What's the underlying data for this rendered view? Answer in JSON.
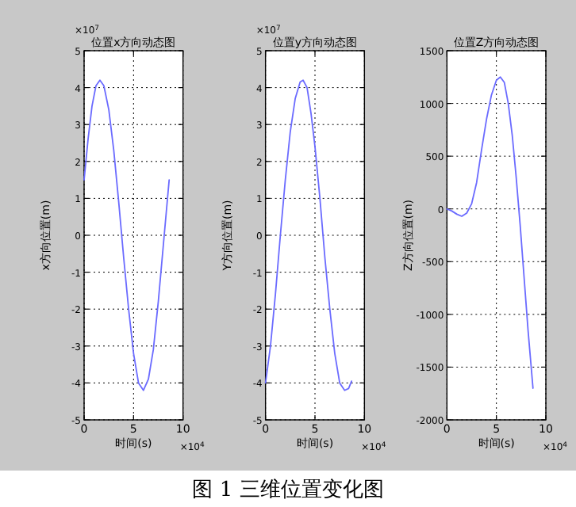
{
  "chart_data": [
    {
      "type": "line",
      "title": "位置x方向动态图",
      "xlabel": "时间(s)",
      "ylabel": "x方向位置(m)",
      "annotations": [
        "×10$^{4}$",
        "×10$^{7}$"
      ],
      "xlim": [
        0,
        10
      ],
      "xticks": [
        0,
        5,
        10
      ],
      "ylim": [
        -5,
        5
      ],
      "yticks": [
        -5,
        -4,
        -3,
        -2,
        -1,
        0,
        1,
        2,
        3,
        4,
        5
      ],
      "grid": true,
      "marker": "none",
      "line_style": "solid",
      "x": [
        0,
        0.4,
        0.8,
        1.2,
        1.6,
        2.0,
        2.5,
        3.0,
        3.5,
        4.0,
        4.5,
        5.0,
        5.5,
        6.0,
        6.5,
        7.0,
        7.5,
        8.0,
        8.3,
        8.6
      ],
      "series": [
        {
          "color": "#6b6bff",
          "values": [
            1.5,
            2.6,
            3.5,
            4.05,
            4.2,
            4.05,
            3.4,
            2.3,
            0.9,
            -0.6,
            -2.0,
            -3.2,
            -4.0,
            -4.2,
            -3.9,
            -3.1,
            -1.8,
            -0.3,
            0.6,
            1.5
          ]
        }
      ]
    },
    {
      "type": "line",
      "title": "位置y方向动态图",
      "xlabel": "时间(s)",
      "ylabel": "Y方向位置(m)",
      "annotations": [
        "×10$^{4}$",
        "×10$^{7}$"
      ],
      "xlim": [
        0,
        10
      ],
      "xticks": [
        0,
        5,
        10
      ],
      "ylim": [
        -5,
        5
      ],
      "yticks": [
        -5,
        -4,
        -3,
        -2,
        -1,
        0,
        1,
        2,
        3,
        4,
        5
      ],
      "grid": true,
      "marker": "none",
      "line_style": "solid",
      "x": [
        0,
        0.5,
        1.0,
        1.5,
        2.0,
        2.5,
        3.0,
        3.5,
        3.8,
        4.2,
        4.6,
        5.0,
        5.5,
        6.0,
        6.5,
        7.0,
        7.5,
        8.0,
        8.4,
        8.7
      ],
      "series": [
        {
          "color": "#6b6bff",
          "values": [
            -4.0,
            -3.0,
            -1.6,
            0.0,
            1.5,
            2.8,
            3.7,
            4.15,
            4.2,
            4.0,
            3.3,
            2.4,
            1.0,
            -0.6,
            -2.0,
            -3.2,
            -4.0,
            -4.2,
            -4.15,
            -3.95
          ]
        }
      ]
    },
    {
      "type": "line",
      "title": "位置Z方向动态图",
      "xlabel": "时间(s)",
      "ylabel": "Z方向位置(m)",
      "annotations": [
        "×10$^{4}$"
      ],
      "xlim": [
        0,
        10
      ],
      "xticks": [
        0,
        5,
        10
      ],
      "ylim": [
        -2000,
        1500
      ],
      "yticks": [
        -2000,
        -1500,
        -1000,
        -500,
        0,
        500,
        1000,
        1500
      ],
      "grid": true,
      "marker": "none",
      "line_style": "solid",
      "x": [
        0,
        0.5,
        1.0,
        1.5,
        2.0,
        2.5,
        3.0,
        3.5,
        4.0,
        4.5,
        5.0,
        5.4,
        5.8,
        6.2,
        6.6,
        7.0,
        7.4,
        7.8,
        8.2,
        8.7
      ],
      "series": [
        {
          "color": "#6b6bff",
          "values": [
            0,
            -20,
            -50,
            -70,
            -40,
            50,
            250,
            560,
            850,
            1080,
            1220,
            1250,
            1200,
            1000,
            700,
            300,
            -150,
            -650,
            -1150,
            -1700
          ]
        }
      ]
    },
    {
      "type": "other",
      "annotations": [
        "图 1 三维位置变化图"
      ]
    }
  ]
}
